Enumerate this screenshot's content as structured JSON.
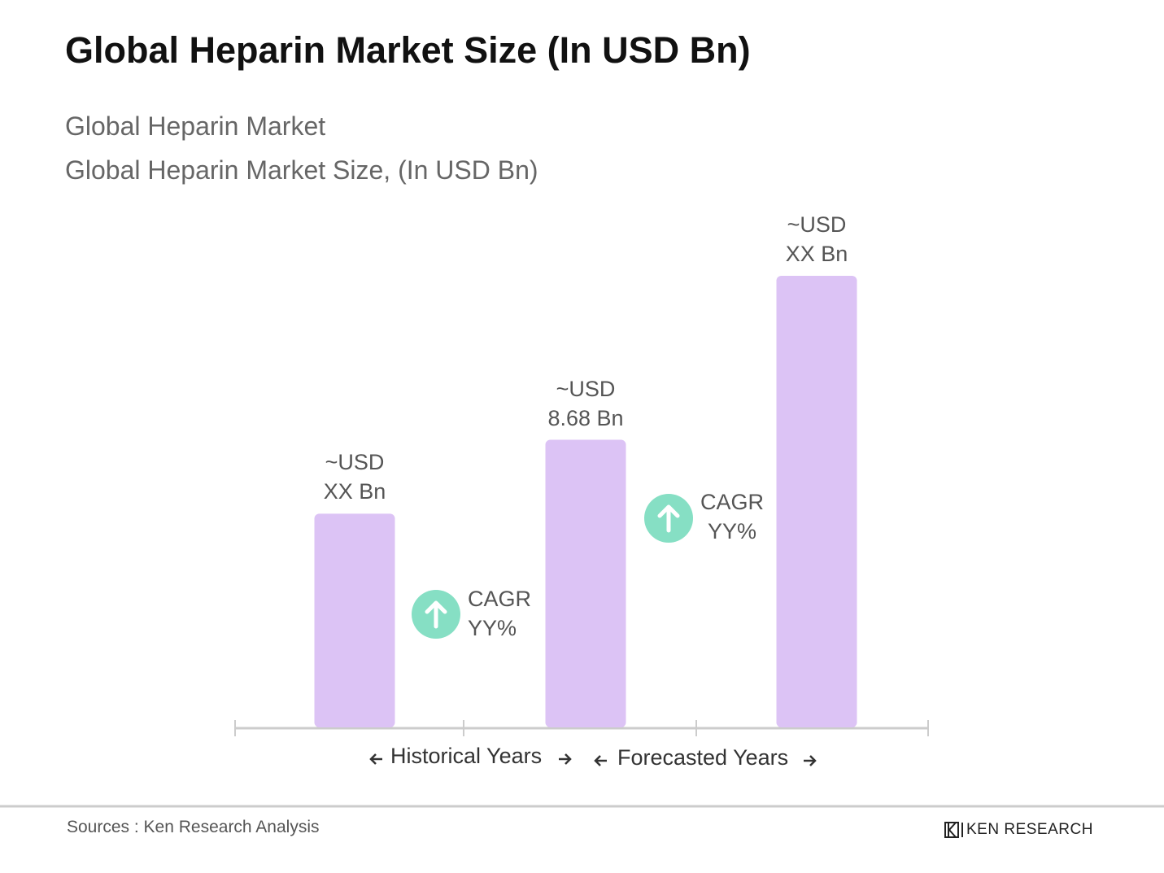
{
  "chart_data": {
    "type": "bar",
    "title": "Global Heparin Market Size (In USD Bn)",
    "subtitle": [
      "Global Heparin Market",
      "Global Heparin Market Size, (In USD Bn)"
    ],
    "categories": [
      null,
      null,
      null
    ],
    "values": [
      6.45,
      8.68,
      13.63
    ],
    "value_labels": [
      "~USD\nXX Bn",
      "~USD\n8.68 Bn",
      "~USD\nXX Bn"
    ],
    "color": "#dcc3f5",
    "annotations": [
      "CAGR\nYY%",
      "CAGR\nYY%"
    ],
    "annotation_color": "#86dfc4",
    "period_labels": [
      "Historical Years",
      "Forecasted Years"
    ],
    "source": "Sources : Ken Research Analysis",
    "brand": "KEN RESEARCH"
  }
}
